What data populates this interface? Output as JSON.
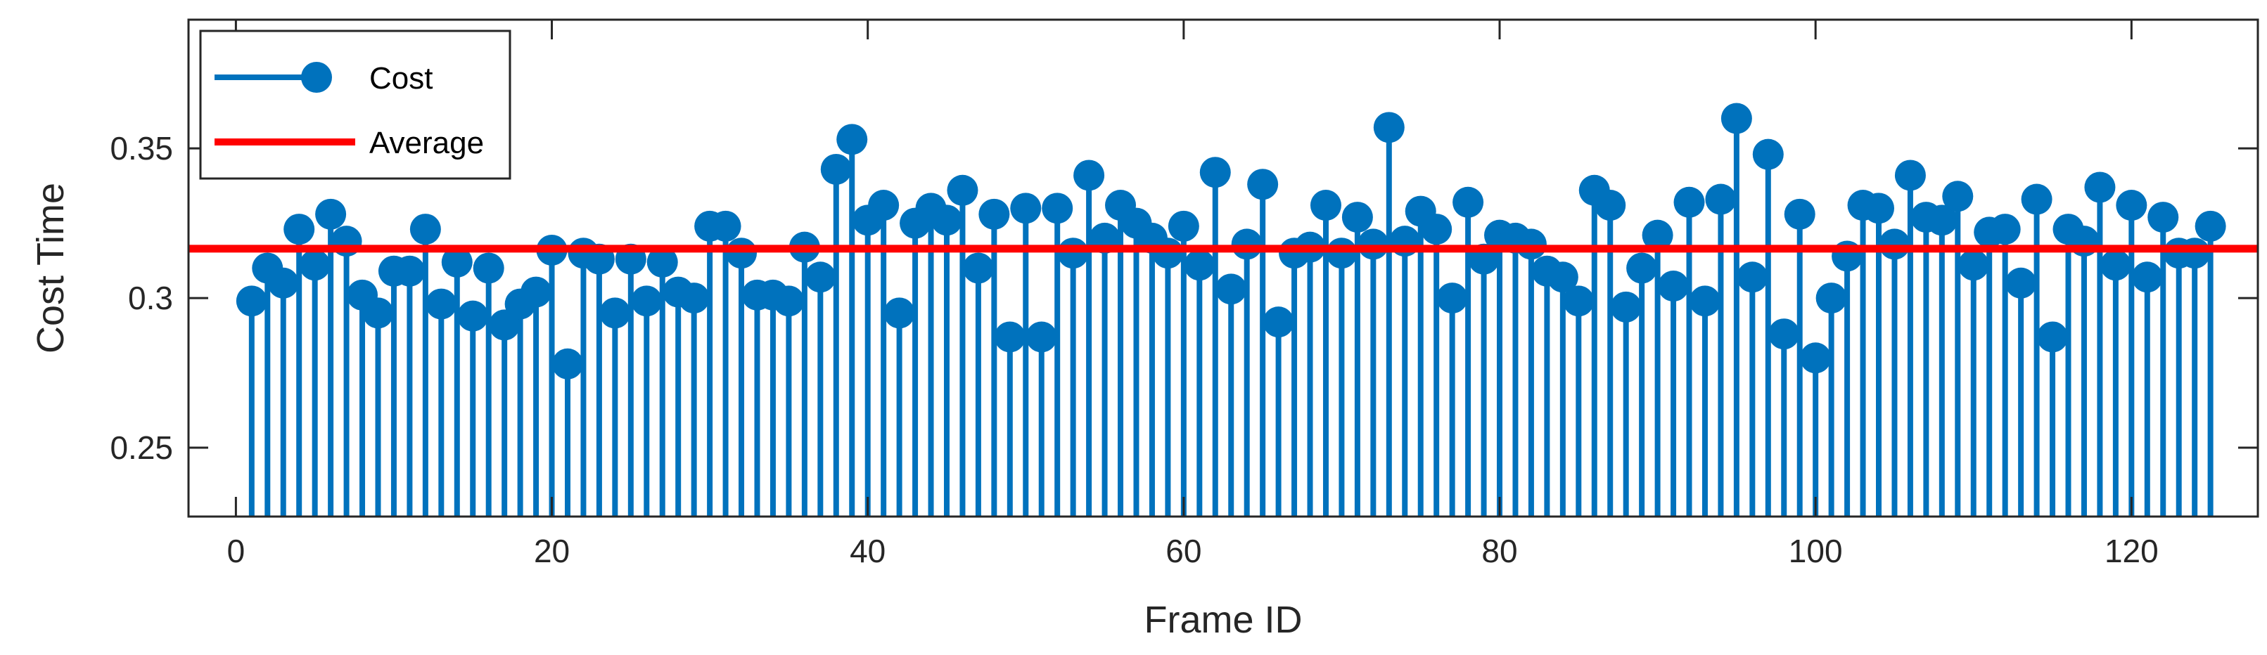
{
  "chart_data": {
    "type": "stem",
    "title": "",
    "xlabel": "Frame ID",
    "ylabel": "Cost Time",
    "xlim": [
      -3,
      128
    ],
    "ylim": [
      0.227,
      0.393
    ],
    "stem_base": 0.227,
    "xticks": [
      0,
      20,
      40,
      60,
      80,
      100,
      120
    ],
    "xtick_labels": [
      "0",
      "20",
      "40",
      "60",
      "80",
      "100",
      "120"
    ],
    "yticks": [
      0.25,
      0.3,
      0.35
    ],
    "ytick_labels": [
      "0.25",
      "0.3",
      "0.35"
    ],
    "grid": false,
    "legend": {
      "position": "top-left"
    },
    "series": [
      {
        "name": "Cost",
        "color": "#0072BD",
        "x": [
          1,
          2,
          3,
          4,
          5,
          6,
          7,
          8,
          9,
          10,
          11,
          12,
          13,
          14,
          15,
          16,
          17,
          18,
          19,
          20,
          21,
          22,
          23,
          24,
          25,
          26,
          27,
          28,
          29,
          30,
          31,
          32,
          33,
          34,
          35,
          36,
          37,
          38,
          39,
          40,
          41,
          42,
          43,
          44,
          45,
          46,
          47,
          48,
          49,
          50,
          51,
          52,
          53,
          54,
          55,
          56,
          57,
          58,
          59,
          60,
          61,
          62,
          63,
          64,
          65,
          66,
          67,
          68,
          69,
          70,
          71,
          72,
          73,
          74,
          75,
          76,
          77,
          78,
          79,
          80,
          81,
          82,
          83,
          84,
          85,
          86,
          87,
          88,
          89,
          90,
          91,
          92,
          93,
          94,
          95,
          96,
          97,
          98,
          99,
          100,
          101,
          102,
          103,
          104,
          105,
          106,
          107,
          108,
          109,
          110,
          111,
          112,
          113,
          114,
          115,
          116,
          117,
          118,
          119,
          120,
          121,
          122,
          123,
          124,
          125
        ],
        "values": [
          0.299,
          0.31,
          0.305,
          0.323,
          0.311,
          0.328,
          0.319,
          0.301,
          0.295,
          0.309,
          0.309,
          0.323,
          0.298,
          0.312,
          0.294,
          0.31,
          0.291,
          0.298,
          0.302,
          0.316,
          0.278,
          0.315,
          0.313,
          0.295,
          0.313,
          0.299,
          0.312,
          0.302,
          0.3,
          0.324,
          0.324,
          0.315,
          0.301,
          0.301,
          0.299,
          0.317,
          0.307,
          0.343,
          0.353,
          0.326,
          0.331,
          0.295,
          0.325,
          0.33,
          0.326,
          0.336,
          0.31,
          0.328,
          0.287,
          0.33,
          0.287,
          0.33,
          0.315,
          0.341,
          0.32,
          0.331,
          0.325,
          0.32,
          0.315,
          0.324,
          0.311,
          0.342,
          0.303,
          0.318,
          0.338,
          0.292,
          0.315,
          0.317,
          0.331,
          0.315,
          0.327,
          0.318,
          0.357,
          0.319,
          0.329,
          0.323,
          0.3,
          0.332,
          0.313,
          0.321,
          0.32,
          0.318,
          0.309,
          0.307,
          0.299,
          0.336,
          0.331,
          0.297,
          0.31,
          0.321,
          0.304,
          0.332,
          0.299,
          0.333,
          0.36,
          0.307,
          0.348,
          0.288,
          0.328,
          0.28,
          0.3,
          0.314,
          0.331,
          0.33,
          0.318,
          0.341,
          0.327,
          0.326,
          0.334,
          0.311,
          0.322,
          0.323,
          0.305,
          0.333,
          0.287,
          0.323,
          0.319,
          0.337,
          0.311,
          0.331,
          0.307,
          0.327,
          0.315,
          0.315,
          0.324
        ]
      },
      {
        "name": "Average",
        "color": "#FF0000",
        "type": "hline",
        "value": 0.3165
      }
    ]
  }
}
